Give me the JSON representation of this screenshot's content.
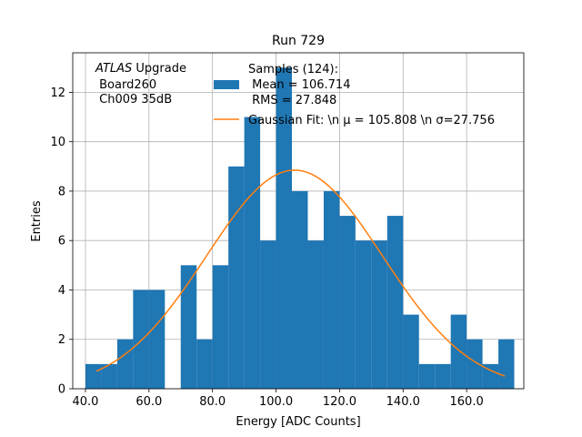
{
  "chart_data": {
    "type": "bar",
    "title": "Run 729",
    "xlabel": "Energy [ADC Counts]",
    "ylabel": "Entries",
    "xlim": [
      36,
      178
    ],
    "ylim": [
      0,
      13.6
    ],
    "xticks": [
      40,
      60,
      80,
      100,
      120,
      140,
      160
    ],
    "xtick_labels": [
      "40.0",
      "60.0",
      "80.0",
      "100.0",
      "120.0",
      "140.0",
      "160.0"
    ],
    "yticks": [
      0,
      2,
      4,
      6,
      8,
      10,
      12
    ],
    "ytick_labels": [
      "0",
      "2",
      "4",
      "6",
      "8",
      "10",
      "12"
    ],
    "grid": true,
    "bin_edges": [
      40,
      45,
      50,
      55,
      60,
      65,
      70,
      75,
      80,
      85,
      90,
      95,
      100,
      105,
      110,
      115,
      120,
      125,
      130,
      135,
      140,
      145,
      150,
      155,
      160,
      165,
      170,
      175
    ],
    "counts": [
      1,
      1,
      2,
      4,
      4,
      0,
      5,
      2,
      5,
      9,
      11,
      6,
      13,
      8,
      6,
      8,
      7,
      6,
      6,
      7,
      3,
      1,
      1,
      3,
      2,
      1,
      2
    ],
    "gaussian_fit": {
      "mean": 105.808,
      "sigma": 27.756,
      "amplitude": 8.85,
      "x_start": 43.5,
      "x_end": 172
    },
    "hist_color": "#1f77b4",
    "fit_color": "#ff7f0e",
    "annotation_lines": [
      "ATLAS",
      " Upgrade",
      " Board260",
      " Ch009 35dB"
    ],
    "legend": {
      "position": "upper-center",
      "hist_label_lines": [
        "Samples (124):",
        " Mean = 106.714",
        " RMS = 27.848"
      ],
      "fit_label": "Gaussian Fit: \\n μ = 105.808 \\n σ=27.756"
    }
  }
}
